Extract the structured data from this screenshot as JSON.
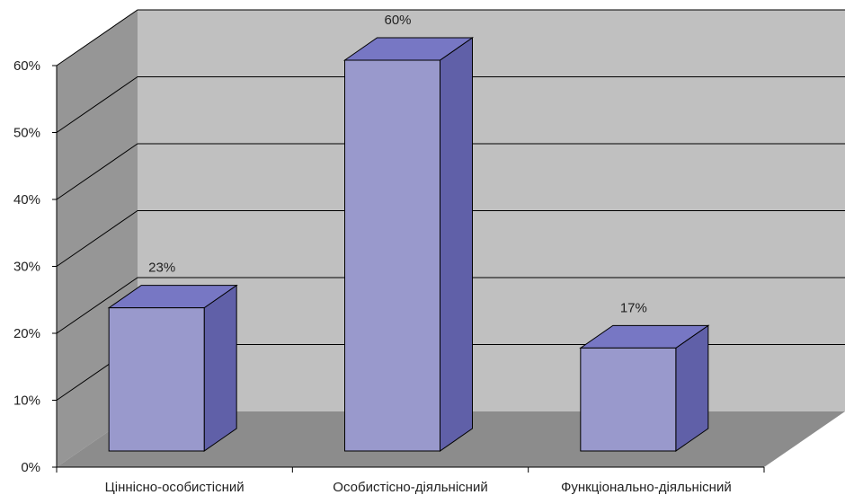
{
  "chart_data": {
    "type": "bar",
    "categories": [
      "Ціннісно-особистісний",
      "Особистісно-діяльнісний",
      "Функціонально-діяльнісний"
    ],
    "values": [
      23,
      60,
      17
    ],
    "data_labels": [
      "23%",
      "60%",
      "17%"
    ],
    "y_ticks": [
      "0%",
      "10%",
      "20%",
      "30%",
      "40%",
      "50%",
      "60%"
    ],
    "ylim": [
      0,
      60
    ],
    "title": "",
    "xlabel": "",
    "ylabel": "",
    "grid": true,
    "legend": "none",
    "colors": {
      "bar_front": "#9999cc",
      "bar_top": "#7777c4",
      "bar_side": "#6060a8",
      "back_wall": "#c0c0c0",
      "side_wall": "#969696",
      "floor": "#8c8c8c",
      "gridline": "#000000"
    }
  }
}
